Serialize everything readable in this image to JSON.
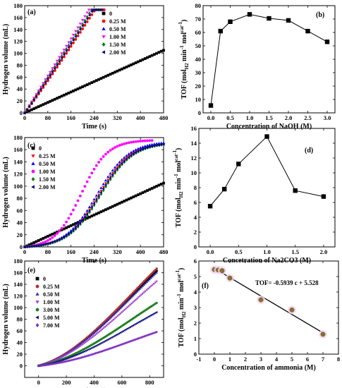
{
  "chart_data": [
    {
      "id": "a",
      "type": "scatter",
      "label": "(a)",
      "xlabel": "Time (s)",
      "ylabel": "Hydrogen volume (mL)",
      "xlim": [
        0,
        480
      ],
      "ylim": [
        0,
        180
      ],
      "xticks": [
        0,
        80,
        160,
        240,
        320,
        400,
        480
      ],
      "yticks": [
        0,
        20,
        40,
        60,
        80,
        100,
        120,
        140,
        160,
        180
      ],
      "grid": false,
      "legend_position": "top-left",
      "series": [
        {
          "name": "0",
          "color": "#000000",
          "marker": "square",
          "tmax": 480,
          "curve": "linear",
          "rate": 0.219,
          "vmax": 105
        },
        {
          "name": "0.25 M",
          "color": "#ff0000",
          "marker": "circle",
          "tmax": 243,
          "curve": "power",
          "vmax": 173,
          "p": 1.05
        },
        {
          "name": "0.50 M",
          "color": "#0000ff",
          "marker": "triangle-up",
          "tmax": 231,
          "curve": "power",
          "vmax": 173,
          "p": 1.0
        },
        {
          "name": "1.00 M",
          "color": "#ff00ff",
          "marker": "triangle-down",
          "tmax": 222,
          "curve": "power",
          "vmax": 173,
          "p": 1.0
        },
        {
          "name": "1.50 M",
          "color": "#008000",
          "marker": "diamond",
          "tmax": 232,
          "curve": "power",
          "vmax": 173,
          "p": 1.02
        },
        {
          "name": "2.00 M",
          "color": "#000080",
          "marker": "triangle-left",
          "tmax": 236,
          "curve": "power",
          "vmax": 173,
          "p": 1.03
        }
      ]
    },
    {
      "id": "b",
      "type": "line",
      "label": "(b)",
      "xlabel": "Concentration of NaOH (M)",
      "ylabel": "TOF (mol_H2 min^-1 mol_cat^-1)",
      "xlim": [
        -0.2,
        3.2
      ],
      "ylim": [
        0,
        80
      ],
      "xticks": [
        0.0,
        0.5,
        1.0,
        1.5,
        2.0,
        2.5,
        3.0
      ],
      "yticks": [
        0,
        10,
        20,
        30,
        40,
        50,
        60,
        70,
        80
      ],
      "x": [
        0.0,
        0.25,
        0.5,
        1.0,
        1.5,
        2.0,
        2.5,
        3.0
      ],
      "y": [
        5.5,
        61,
        68,
        73.5,
        70.5,
        69,
        61,
        53
      ]
    },
    {
      "id": "c",
      "type": "scatter",
      "label": "(c)",
      "xlabel": "Time (s)",
      "ylabel": "Hydrogen volume (mL)",
      "xlim": [
        0,
        480
      ],
      "ylim": [
        0,
        180
      ],
      "xticks": [
        0,
        80,
        160,
        240,
        320,
        400,
        480
      ],
      "yticks": [
        0,
        20,
        40,
        60,
        80,
        100,
        120,
        140,
        160,
        180
      ],
      "grid": false,
      "legend_position": "top-left",
      "series": [
        {
          "name": "0",
          "color": "#000000",
          "marker": "square",
          "curve": "linear",
          "rate": 0.219,
          "vmax": 105,
          "tmax": 480
        },
        {
          "name": "0.25 M",
          "color": "#ff0000",
          "marker": "triangle-down",
          "curve": "sigmoid",
          "vmax": 172,
          "t50": 255,
          "w": 55,
          "tmax": 480
        },
        {
          "name": "0.50 M",
          "color": "#0000ff",
          "marker": "triangle-up",
          "curve": "sigmoid",
          "vmax": 174,
          "t50": 250,
          "w": 55,
          "tmax": 480
        },
        {
          "name": "1.00 M",
          "color": "#ff00ff",
          "marker": "circle",
          "curve": "sigmoid",
          "vmax": 176,
          "t50": 195,
          "w": 45,
          "tmax": 440
        },
        {
          "name": "1.50 M",
          "color": "#008000",
          "marker": "diamond",
          "curve": "sigmoid",
          "vmax": 172,
          "t50": 262,
          "w": 56,
          "tmax": 480
        },
        {
          "name": "2.00 M",
          "color": "#000080",
          "marker": "triangle-left",
          "curve": "sigmoid",
          "vmax": 172,
          "t50": 258,
          "w": 56,
          "tmax": 480
        }
      ]
    },
    {
      "id": "d",
      "type": "line",
      "label": "(d)",
      "xlabel": "Concetration of Na2CO3 (M)",
      "ylabel": "TOF (mol_H2 min^-1 mol_cat^-1)",
      "xlim": [
        -0.2,
        2.2
      ],
      "ylim": [
        0,
        16
      ],
      "xticks": [
        0.0,
        0.5,
        1.0,
        1.5,
        2.0
      ],
      "yticks": [
        0,
        2,
        4,
        6,
        8,
        10,
        12,
        14,
        16
      ],
      "x": [
        0.0,
        0.25,
        0.5,
        1.0,
        1.5,
        2.0
      ],
      "y": [
        5.5,
        7.8,
        11.2,
        14.9,
        7.6,
        6.8
      ]
    },
    {
      "id": "e",
      "type": "scatter",
      "label": "(e)",
      "xlabel": "Time (s)",
      "ylabel": "Hydrogen volume (mL)",
      "xlim": [
        -100,
        900
      ],
      "ylim": [
        -20,
        180
      ],
      "xticks": [
        0,
        200,
        400,
        600,
        800
      ],
      "yticks": [
        0,
        20,
        40,
        60,
        80,
        100,
        120,
        140,
        160,
        180
      ],
      "grid": false,
      "legend_position": "top-left",
      "series": [
        {
          "name": "0",
          "color": "#000000",
          "marker": "square",
          "vend": 163
        },
        {
          "name": "0.25 M",
          "color": "#b03030",
          "marker": "circle",
          "vend": 167
        },
        {
          "name": "0.50 M",
          "color": "#3030b0",
          "marker": "triangle-up",
          "vend": 160
        },
        {
          "name": "1.00 M",
          "color": "#a040d0",
          "marker": "triangle-down",
          "vend": 145
        },
        {
          "name": "3.00 M",
          "color": "#208020",
          "marker": "circle",
          "vend": 108
        },
        {
          "name": "5.00 M",
          "color": "#101080",
          "marker": "triangle-left",
          "vend": 92
        },
        {
          "name": "7.00 M",
          "color": "#8030c0",
          "marker": "diamond",
          "vend": 58
        }
      ]
    },
    {
      "id": "f",
      "type": "scatter",
      "label": "(f)",
      "xlabel": "Concentration of ammonia (M)",
      "ylabel": "TOF (mol_H2 min^-1 mol_cat^-1)",
      "xlim": [
        -1,
        8
      ],
      "ylim": [
        0,
        6
      ],
      "xticks": [
        -1,
        0,
        1,
        2,
        3,
        4,
        5,
        6,
        7,
        8
      ],
      "yticks": [
        0,
        1,
        2,
        3,
        4,
        5,
        6
      ],
      "x": [
        0,
        0.25,
        0.5,
        1,
        3,
        5,
        7
      ],
      "y": [
        5.45,
        5.42,
        5.38,
        4.9,
        3.5,
        2.85,
        1.28
      ],
      "fit": {
        "slope": -0.5939,
        "intercept": 5.528,
        "text": "TOF= -0.5939 c + 5.528"
      }
    }
  ]
}
